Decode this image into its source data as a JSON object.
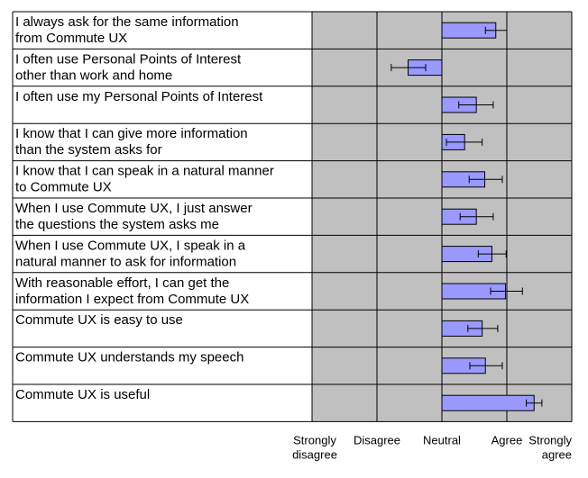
{
  "chart_data": {
    "type": "bar",
    "orientation": "horizontal",
    "title": "",
    "xlabel": "",
    "ylabel": "",
    "x_scale": [
      1,
      5
    ],
    "x_tick_labels": [
      [
        "Strongly",
        "disagree"
      ],
      [
        "Disagree"
      ],
      [
        "Neutral"
      ],
      [
        "Agree"
      ],
      [
        "Strongly",
        "agree"
      ]
    ],
    "bar_origin": 3,
    "grid": true,
    "legend": "none",
    "colors": {
      "bar_fill": "#9999ff",
      "bar_edge": "#000000",
      "plot_bg": "#c0c0c0"
    },
    "categories": [
      [
        "I always ask for the same information",
        "from Commute UX"
      ],
      [
        "I often use Personal Points of Interest",
        "other than work and home"
      ],
      [
        "I often use my Personal Points of Interest"
      ],
      [
        "I know that I can give more information",
        "than the system asks for"
      ],
      [
        "I know that I can speak in a natural manner",
        "to Commute UX"
      ],
      [
        "When I use Commute UX, I just answer",
        "the questions the system asks me"
      ],
      [
        "When I use Commute UX, I speak in a",
        "natural manner to ask for information"
      ],
      [
        "With reasonable effort, I can get the",
        "information I expect from Commute UX"
      ],
      [
        "Commute UX is easy to use"
      ],
      [
        "Commute UX understands my speech"
      ],
      [
        "Commute UX is useful"
      ]
    ],
    "values": [
      3.83,
      2.48,
      3.53,
      3.35,
      3.66,
      3.53,
      3.77,
      3.98,
      3.62,
      3.67,
      4.42
    ],
    "error_low": [
      3.67,
      2.22,
      3.26,
      3.07,
      3.42,
      3.28,
      3.56,
      3.75,
      3.4,
      3.43,
      4.3
    ],
    "error_high": [
      4.0,
      2.75,
      3.79,
      3.62,
      3.93,
      3.79,
      3.99,
      4.24,
      3.86,
      3.93,
      4.54
    ]
  }
}
